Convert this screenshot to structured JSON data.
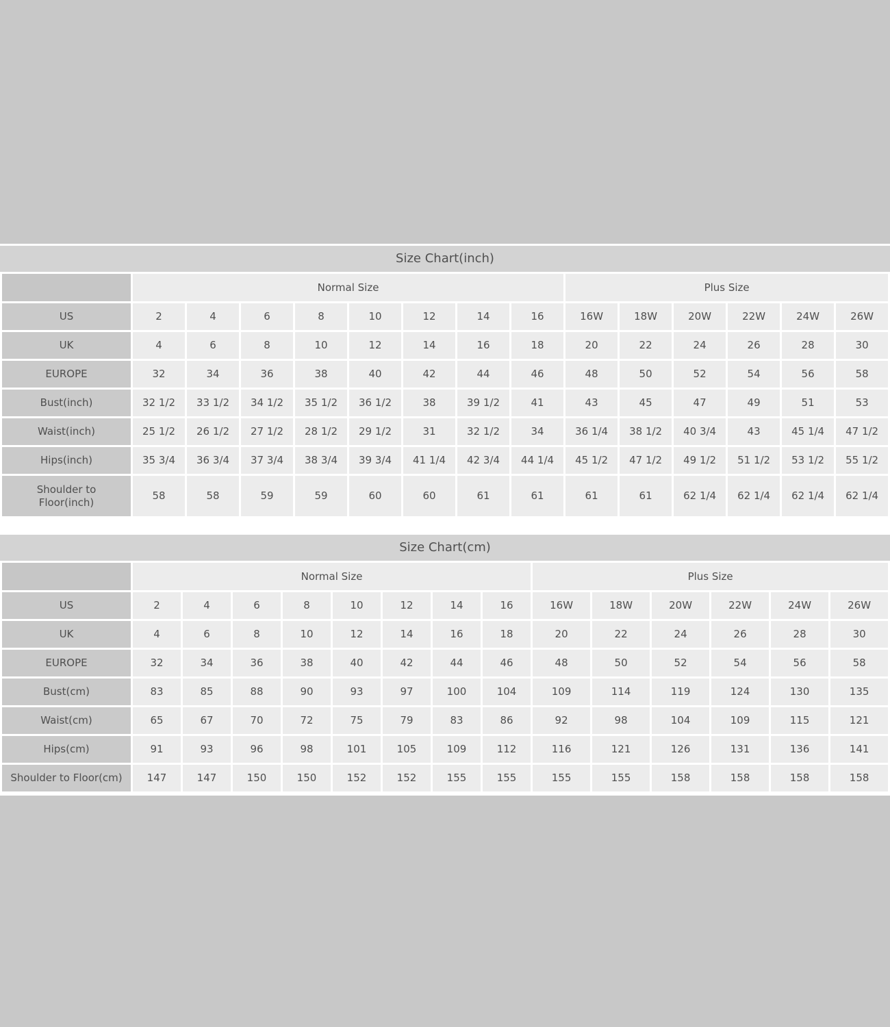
{
  "page_background": "#c8c8c8",
  "colors": {
    "title_bar": "#d3d3d3",
    "corner_cell": "#c6c6c6",
    "label_cell": "#cacaca",
    "data_cell": "#ececec",
    "gridline": "#ffffff",
    "text": "#4f4f4f"
  },
  "chart_data": [
    {
      "type": "table",
      "id": "inch",
      "title": "Size Chart(inch)",
      "column_groups": [
        {
          "label": "Normal Size",
          "span": 8
        },
        {
          "label": "Plus Size",
          "span": 6
        }
      ],
      "rows": [
        {
          "label": "US",
          "values": [
            "2",
            "4",
            "6",
            "8",
            "10",
            "12",
            "14",
            "16",
            "16W",
            "18W",
            "20W",
            "22W",
            "24W",
            "26W"
          ]
        },
        {
          "label": "UK",
          "values": [
            "4",
            "6",
            "8",
            "10",
            "12",
            "14",
            "16",
            "18",
            "20",
            "22",
            "24",
            "26",
            "28",
            "30"
          ]
        },
        {
          "label": "EUROPE",
          "values": [
            "32",
            "34",
            "36",
            "38",
            "40",
            "42",
            "44",
            "46",
            "48",
            "50",
            "52",
            "54",
            "56",
            "58"
          ]
        },
        {
          "label": "Bust(inch)",
          "values": [
            "32 1/2",
            "33 1/2",
            "34 1/2",
            "35 1/2",
            "36 1/2",
            "38",
            "39 1/2",
            "41",
            "43",
            "45",
            "47",
            "49",
            "51",
            "53"
          ]
        },
        {
          "label": "Waist(inch)",
          "values": [
            "25 1/2",
            "26 1/2",
            "27 1/2",
            "28 1/2",
            "29 1/2",
            "31",
            "32 1/2",
            "34",
            "36 1/4",
            "38 1/2",
            "40 3/4",
            "43",
            "45 1/4",
            "47 1/2"
          ]
        },
        {
          "label": "Hips(inch)",
          "values": [
            "35 3/4",
            "36 3/4",
            "37 3/4",
            "38 3/4",
            "39 3/4",
            "41 1/4",
            "42 3/4",
            "44 1/4",
            "45 1/2",
            "47 1/2",
            "49 1/2",
            "51 1/2",
            "53 1/2",
            "55 1/2"
          ]
        },
        {
          "label": "Shoulder to\nFloor(inch)",
          "tall": true,
          "values": [
            "58",
            "58",
            "59",
            "59",
            "60",
            "60",
            "61",
            "61",
            "61",
            "61",
            "62 1/4",
            "62 1/4",
            "62 1/4",
            "62 1/4"
          ]
        }
      ]
    },
    {
      "type": "table",
      "id": "cm",
      "title": "Size Chart(cm)",
      "column_groups": [
        {
          "label": "Normal Size",
          "span": 8
        },
        {
          "label": "Plus Size",
          "span": 6
        }
      ],
      "rows": [
        {
          "label": "US",
          "values": [
            "2",
            "4",
            "6",
            "8",
            "10",
            "12",
            "14",
            "16",
            "16W",
            "18W",
            "20W",
            "22W",
            "24W",
            "26W"
          ]
        },
        {
          "label": "UK",
          "values": [
            "4",
            "6",
            "8",
            "10",
            "12",
            "14",
            "16",
            "18",
            "20",
            "22",
            "24",
            "26",
            "28",
            "30"
          ]
        },
        {
          "label": "EUROPE",
          "values": [
            "32",
            "34",
            "36",
            "38",
            "40",
            "42",
            "44",
            "46",
            "48",
            "50",
            "52",
            "54",
            "56",
            "58"
          ]
        },
        {
          "label": "Bust(cm)",
          "values": [
            "83",
            "85",
            "88",
            "90",
            "93",
            "97",
            "100",
            "104",
            "109",
            "114",
            "119",
            "124",
            "130",
            "135"
          ]
        },
        {
          "label": "Waist(cm)",
          "values": [
            "65",
            "67",
            "70",
            "72",
            "75",
            "79",
            "83",
            "86",
            "92",
            "98",
            "104",
            "109",
            "115",
            "121"
          ]
        },
        {
          "label": "Hips(cm)",
          "values": [
            "91",
            "93",
            "96",
            "98",
            "101",
            "105",
            "109",
            "112",
            "116",
            "121",
            "126",
            "131",
            "136",
            "141"
          ]
        },
        {
          "label": "Shoulder to Floor(cm)",
          "values": [
            "147",
            "147",
            "150",
            "150",
            "152",
            "152",
            "155",
            "155",
            "155",
            "155",
            "158",
            "158",
            "158",
            "158"
          ]
        }
      ]
    }
  ]
}
